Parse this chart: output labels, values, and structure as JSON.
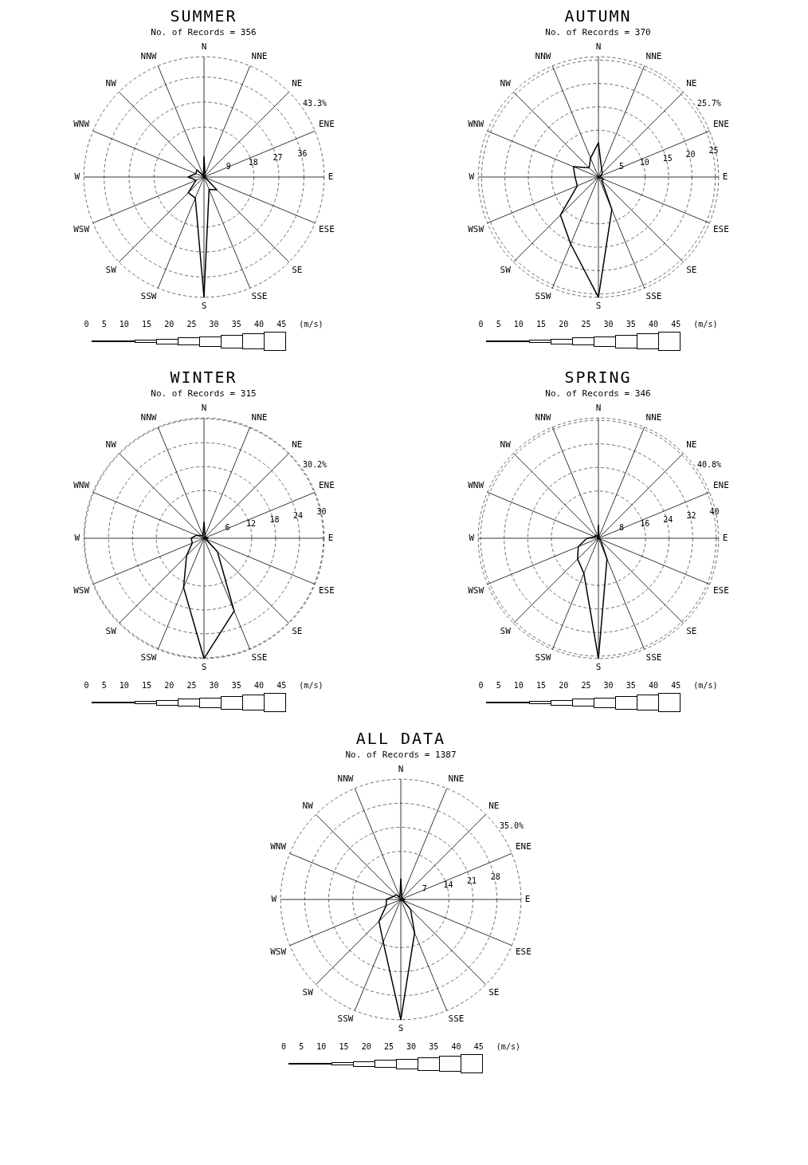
{
  "chart_data": [
    {
      "type": "radar",
      "title": "SUMMER",
      "subtitle": "No. of Records = 356",
      "categories": [
        "N",
        "NNE",
        "NE",
        "ENE",
        "E",
        "ESE",
        "SE",
        "SSE",
        "S",
        "SSW",
        "SW",
        "WSW",
        "W",
        "WNW",
        "NW",
        "NNW"
      ],
      "series": [
        {
          "color": "#000000",
          "values": [
            7.4,
            1,
            0.5,
            0.5,
            0.5,
            0.5,
            6.5,
            4.8,
            43.3,
            8.2,
            8,
            3.1,
            5.7,
            3.2,
            3.6,
            0.5
          ]
        }
      ],
      "ylim": [
        0,
        43.3
      ],
      "yticks": [
        9,
        18,
        27,
        36,
        {
          "value": 43.3,
          "label": "43.3%"
        }
      ],
      "grid": true,
      "marker": "none",
      "annotations": [
        "0 5 10 15 20 25 30 35 40 45 (m/s)"
      ]
    },
    {
      "type": "radar",
      "title": "AUTUMN",
      "subtitle": "No. of Records = 370",
      "categories": [
        "N",
        "NNE",
        "NE",
        "ENE",
        "E",
        "ESE",
        "SE",
        "SSE",
        "S",
        "SSW",
        "SW",
        "WSW",
        "W",
        "WNW",
        "NW",
        "NNW"
      ],
      "series": [
        {
          "color": "#000000",
          "values": [
            7.3,
            1.8,
            1.2,
            0.5,
            0.3,
            1.2,
            1,
            7.5,
            25.7,
            15.5,
            11.5,
            4.9,
            5,
            5.8,
            2.8,
            4.4
          ]
        }
      ],
      "ylim": [
        0,
        25.7
      ],
      "yticks": [
        5,
        10,
        15,
        20,
        25,
        {
          "value": 25.7,
          "label": "25.7%"
        }
      ],
      "grid": true,
      "marker": "none",
      "annotations": [
        "0 5 10 15 20 25 30 35 40 45 (m/s)"
      ]
    },
    {
      "type": "radar",
      "title": "WINTER",
      "subtitle": "No. of Records = 315",
      "categories": [
        "N",
        "NNE",
        "NE",
        "ENE",
        "E",
        "ESE",
        "SE",
        "SSE",
        "S",
        "SSW",
        "SW",
        "WSW",
        "W",
        "WNW",
        "NW",
        "NNW"
      ],
      "series": [
        {
          "color": "#000000",
          "values": [
            4.1,
            0.7,
            0.5,
            0.5,
            1,
            0.5,
            4.8,
            19.8,
            30.2,
            13.4,
            6.2,
            3.2,
            3.2,
            2,
            0.9,
            0.7
          ]
        }
      ],
      "ylim": [
        0,
        30.2
      ],
      "yticks": [
        6,
        12,
        18,
        24,
        30,
        {
          "value": 30.2,
          "label": "30.2%"
        }
      ],
      "grid": true,
      "marker": "none",
      "annotations": [
        "0 5 10 15 20 25 30 35 40 45 (m/s)"
      ]
    },
    {
      "type": "radar",
      "title": "SPRING",
      "subtitle": "No. of Records = 346",
      "categories": [
        "N",
        "NNE",
        "NE",
        "ENE",
        "E",
        "ESE",
        "SE",
        "SSE",
        "S",
        "SSW",
        "SW",
        "WSW",
        "W",
        "WNW",
        "NW",
        "NNW"
      ],
      "series": [
        {
          "color": "#000000",
          "values": [
            4.4,
            0.5,
            0.3,
            0.3,
            0.3,
            0.5,
            1.2,
            7.6,
            40.8,
            12.9,
            10,
            7.4,
            3.9,
            1.2,
            1.5,
            0.5
          ]
        }
      ],
      "ylim": [
        0,
        40.8
      ],
      "yticks": [
        8,
        16,
        24,
        32,
        40,
        {
          "value": 40.8,
          "label": "40.8%"
        }
      ],
      "grid": true,
      "marker": "none",
      "annotations": [
        "0 5 10 15 20 25 30 35 40 45 (m/s)"
      ]
    },
    {
      "type": "radar",
      "title": "ALL DATA",
      "subtitle": "No. of Records = 1387",
      "categories": [
        "N",
        "NNE",
        "NE",
        "ENE",
        "E",
        "ESE",
        "SE",
        "SSE",
        "S",
        "SSW",
        "SW",
        "WSW",
        "W",
        "WNW",
        "NW",
        "NNW"
      ],
      "series": [
        {
          "color": "#000000",
          "values": [
            6,
            0.8,
            0.6,
            0.5,
            1.1,
            0.5,
            4,
            10.5,
            35,
            13.4,
            9,
            4.6,
            4.2,
            2.3,
            1.9,
            0.7
          ]
        }
      ],
      "ylim": [
        0,
        35
      ],
      "yticks": [
        7,
        14,
        21,
        28,
        {
          "value": 35,
          "label": "35.0%"
        }
      ],
      "grid": true,
      "marker": "none",
      "annotations": [
        "0 5 10 15 20 25 30 35 40 45 (m/s)"
      ]
    }
  ]
}
